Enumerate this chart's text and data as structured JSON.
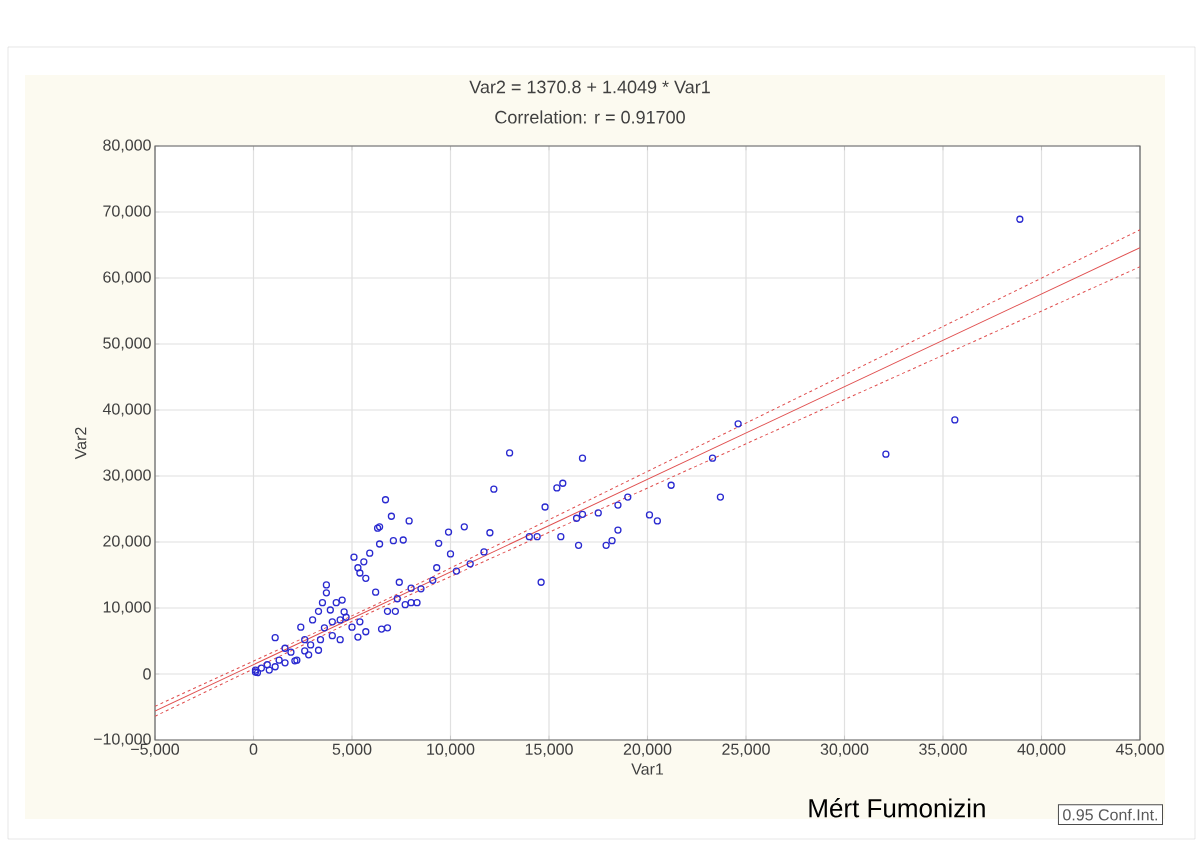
{
  "chart_data": {
    "type": "scatter",
    "title": "Var2    = 1370.8 + 1.4049 * Var1",
    "subtitle": "Correlation: r = 0.91700",
    "xlabel": "Var1",
    "ylabel": "Var2",
    "xlim": [
      -5000,
      45000
    ],
    "ylim": [
      -10000,
      80000
    ],
    "xticks": [
      {
        "value": -5000,
        "label": "−5,000"
      },
      0,
      {
        "value": 5000,
        "label": "5,000"
      },
      {
        "value": 10000,
        "label": "10,000"
      },
      {
        "value": 15000,
        "label": "15,000"
      },
      {
        "value": 20000,
        "label": "20,000"
      },
      {
        "value": 25000,
        "label": "25,000"
      },
      {
        "value": 30000,
        "label": "30,000"
      },
      {
        "value": 35000,
        "label": "35,000"
      },
      {
        "value": 40000,
        "label": "40,000"
      },
      {
        "value": 45000,
        "label": "45,000"
      }
    ],
    "yticks": [
      {
        "value": -10000,
        "label": "−10,000"
      },
      0,
      {
        "value": 10000,
        "label": "10,000"
      },
      {
        "value": 20000,
        "label": "20,000"
      },
      {
        "value": 30000,
        "label": "30,000"
      },
      {
        "value": 40000,
        "label": "40,000"
      },
      {
        "value": 50000,
        "label": "50,000"
      },
      {
        "value": 60000,
        "label": "60,000"
      },
      {
        "value": 70000,
        "label": "70,000"
      },
      {
        "value": 80000,
        "label": "80,000"
      }
    ],
    "grid": true,
    "series": [
      {
        "marker": "circle",
        "color": "#2a2ad0",
        "x": [
          38900,
          35600,
          32100,
          24600,
          23300,
          23700,
          21200,
          20100,
          20500,
          19000,
          18500,
          18500,
          18200,
          17900,
          17500,
          16700,
          16700,
          16400,
          16500,
          15700,
          15400,
          15600,
          14800,
          14400,
          14000,
          14600,
          13000,
          12200,
          12000,
          11700,
          10700,
          11000,
          9900,
          10000,
          9400,
          9300,
          10300,
          9100,
          8500,
          8000,
          8300,
          7300,
          6700,
          7900,
          7000,
          6400,
          6300,
          7100,
          7600,
          6400,
          5100,
          5600,
          5300,
          5400,
          5900,
          5700,
          7400,
          8000,
          6200,
          7700,
          6800,
          7200,
          6800,
          6500,
          3700,
          3700,
          3300,
          3500,
          3900,
          3000,
          4200,
          4400,
          4600,
          3600,
          4000,
          4400,
          5300,
          5000,
          5400,
          5700,
          4500,
          2400,
          2600,
          3300,
          1100,
          1600,
          2200,
          2800,
          1300,
          700,
          1900,
          400,
          100,
          100,
          200,
          800,
          1100,
          1600,
          2100,
          2600,
          2900,
          3400,
          4000,
          4700
        ],
        "values": [
          68900,
          38500,
          33300,
          37900,
          32700,
          26800,
          28600,
          24100,
          23200,
          26800,
          25600,
          21800,
          20200,
          19500,
          24400,
          32700,
          24200,
          23600,
          19500,
          28900,
          28200,
          20800,
          25300,
          20800,
          20800,
          13900,
          33500,
          28000,
          21400,
          18500,
          22300,
          16700,
          21500,
          18200,
          19800,
          16100,
          15600,
          14200,
          12900,
          10800,
          10800,
          11400,
          26400,
          23200,
          23900,
          22300,
          22100,
          20200,
          20300,
          19700,
          17700,
          17000,
          16100,
          15300,
          18300,
          14500,
          13900,
          13000,
          12400,
          10500,
          9500,
          9500,
          7000,
          6800,
          13500,
          12300,
          9500,
          10800,
          9700,
          8200,
          10800,
          8200,
          9400,
          7000,
          5800,
          5200,
          5600,
          7100,
          7900,
          6400,
          11200,
          7100,
          5200,
          3600,
          5500,
          3900,
          2100,
          2900,
          2100,
          1400,
          3300,
          900,
          600,
          300,
          200,
          600,
          1100,
          1700,
          2000,
          3500,
          4400,
          5200,
          7900,
          8600
        ]
      },
      {
        "type": "line",
        "color": "#e05050",
        "line_style": "solid",
        "x": [
          -5000,
          45000
        ],
        "values": [
          -5600,
          64600
        ]
      },
      {
        "type": "line",
        "color": "#e05050",
        "line_style": "dashed",
        "x": [
          -5000,
          6000,
          45000
        ],
        "values": [
          -4900,
          10200,
          67300
        ]
      },
      {
        "type": "line",
        "color": "#e05050",
        "line_style": "dashed",
        "x": [
          -5000,
          6000,
          45000
        ],
        "values": [
          -6400,
          9400,
          61700
        ]
      }
    ],
    "annotations": [
      "0.95 Conf.Int.",
      "Mért Fumonizin"
    ]
  }
}
